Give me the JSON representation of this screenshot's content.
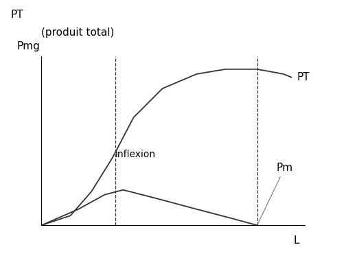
{
  "chart_data": {
    "type": "line",
    "title": "(produit total)",
    "y_label_top": "PT",
    "ylabel": "Pmg",
    "xlabel": "L",
    "tick_labels": false,
    "xlim": [
      0,
      10
    ],
    "ylim": [
      0,
      10.5
    ],
    "xticks": [],
    "yticks": [],
    "series": [
      {
        "name": "PT",
        "color": "#333333",
        "x": [
          0,
          1.1,
          1.9,
          2.7,
          3.5,
          4.6,
          5.9,
          7.0,
          8.1,
          8.2,
          9.2,
          9.5
        ],
        "values": [
          0,
          0.6,
          2.1,
          4.2,
          6.7,
          8.5,
          9.4,
          9.7,
          9.7,
          9.7,
          9.4,
          9.2
        ]
      },
      {
        "name": "Pm",
        "color": "#333333",
        "x": [
          0,
          1.4,
          2.4,
          3.1,
          4.3,
          5.9,
          7.3,
          8.2
        ],
        "values": [
          0,
          1.0,
          1.9,
          2.2,
          1.7,
          1.0,
          0.4,
          0
        ]
      }
    ],
    "annotations": [
      {
        "text": "inflexion",
        "x": 2.8,
        "y": 4.4
      }
    ],
    "reference_lines": {
      "x": [
        2.8,
        8.2
      ]
    }
  }
}
